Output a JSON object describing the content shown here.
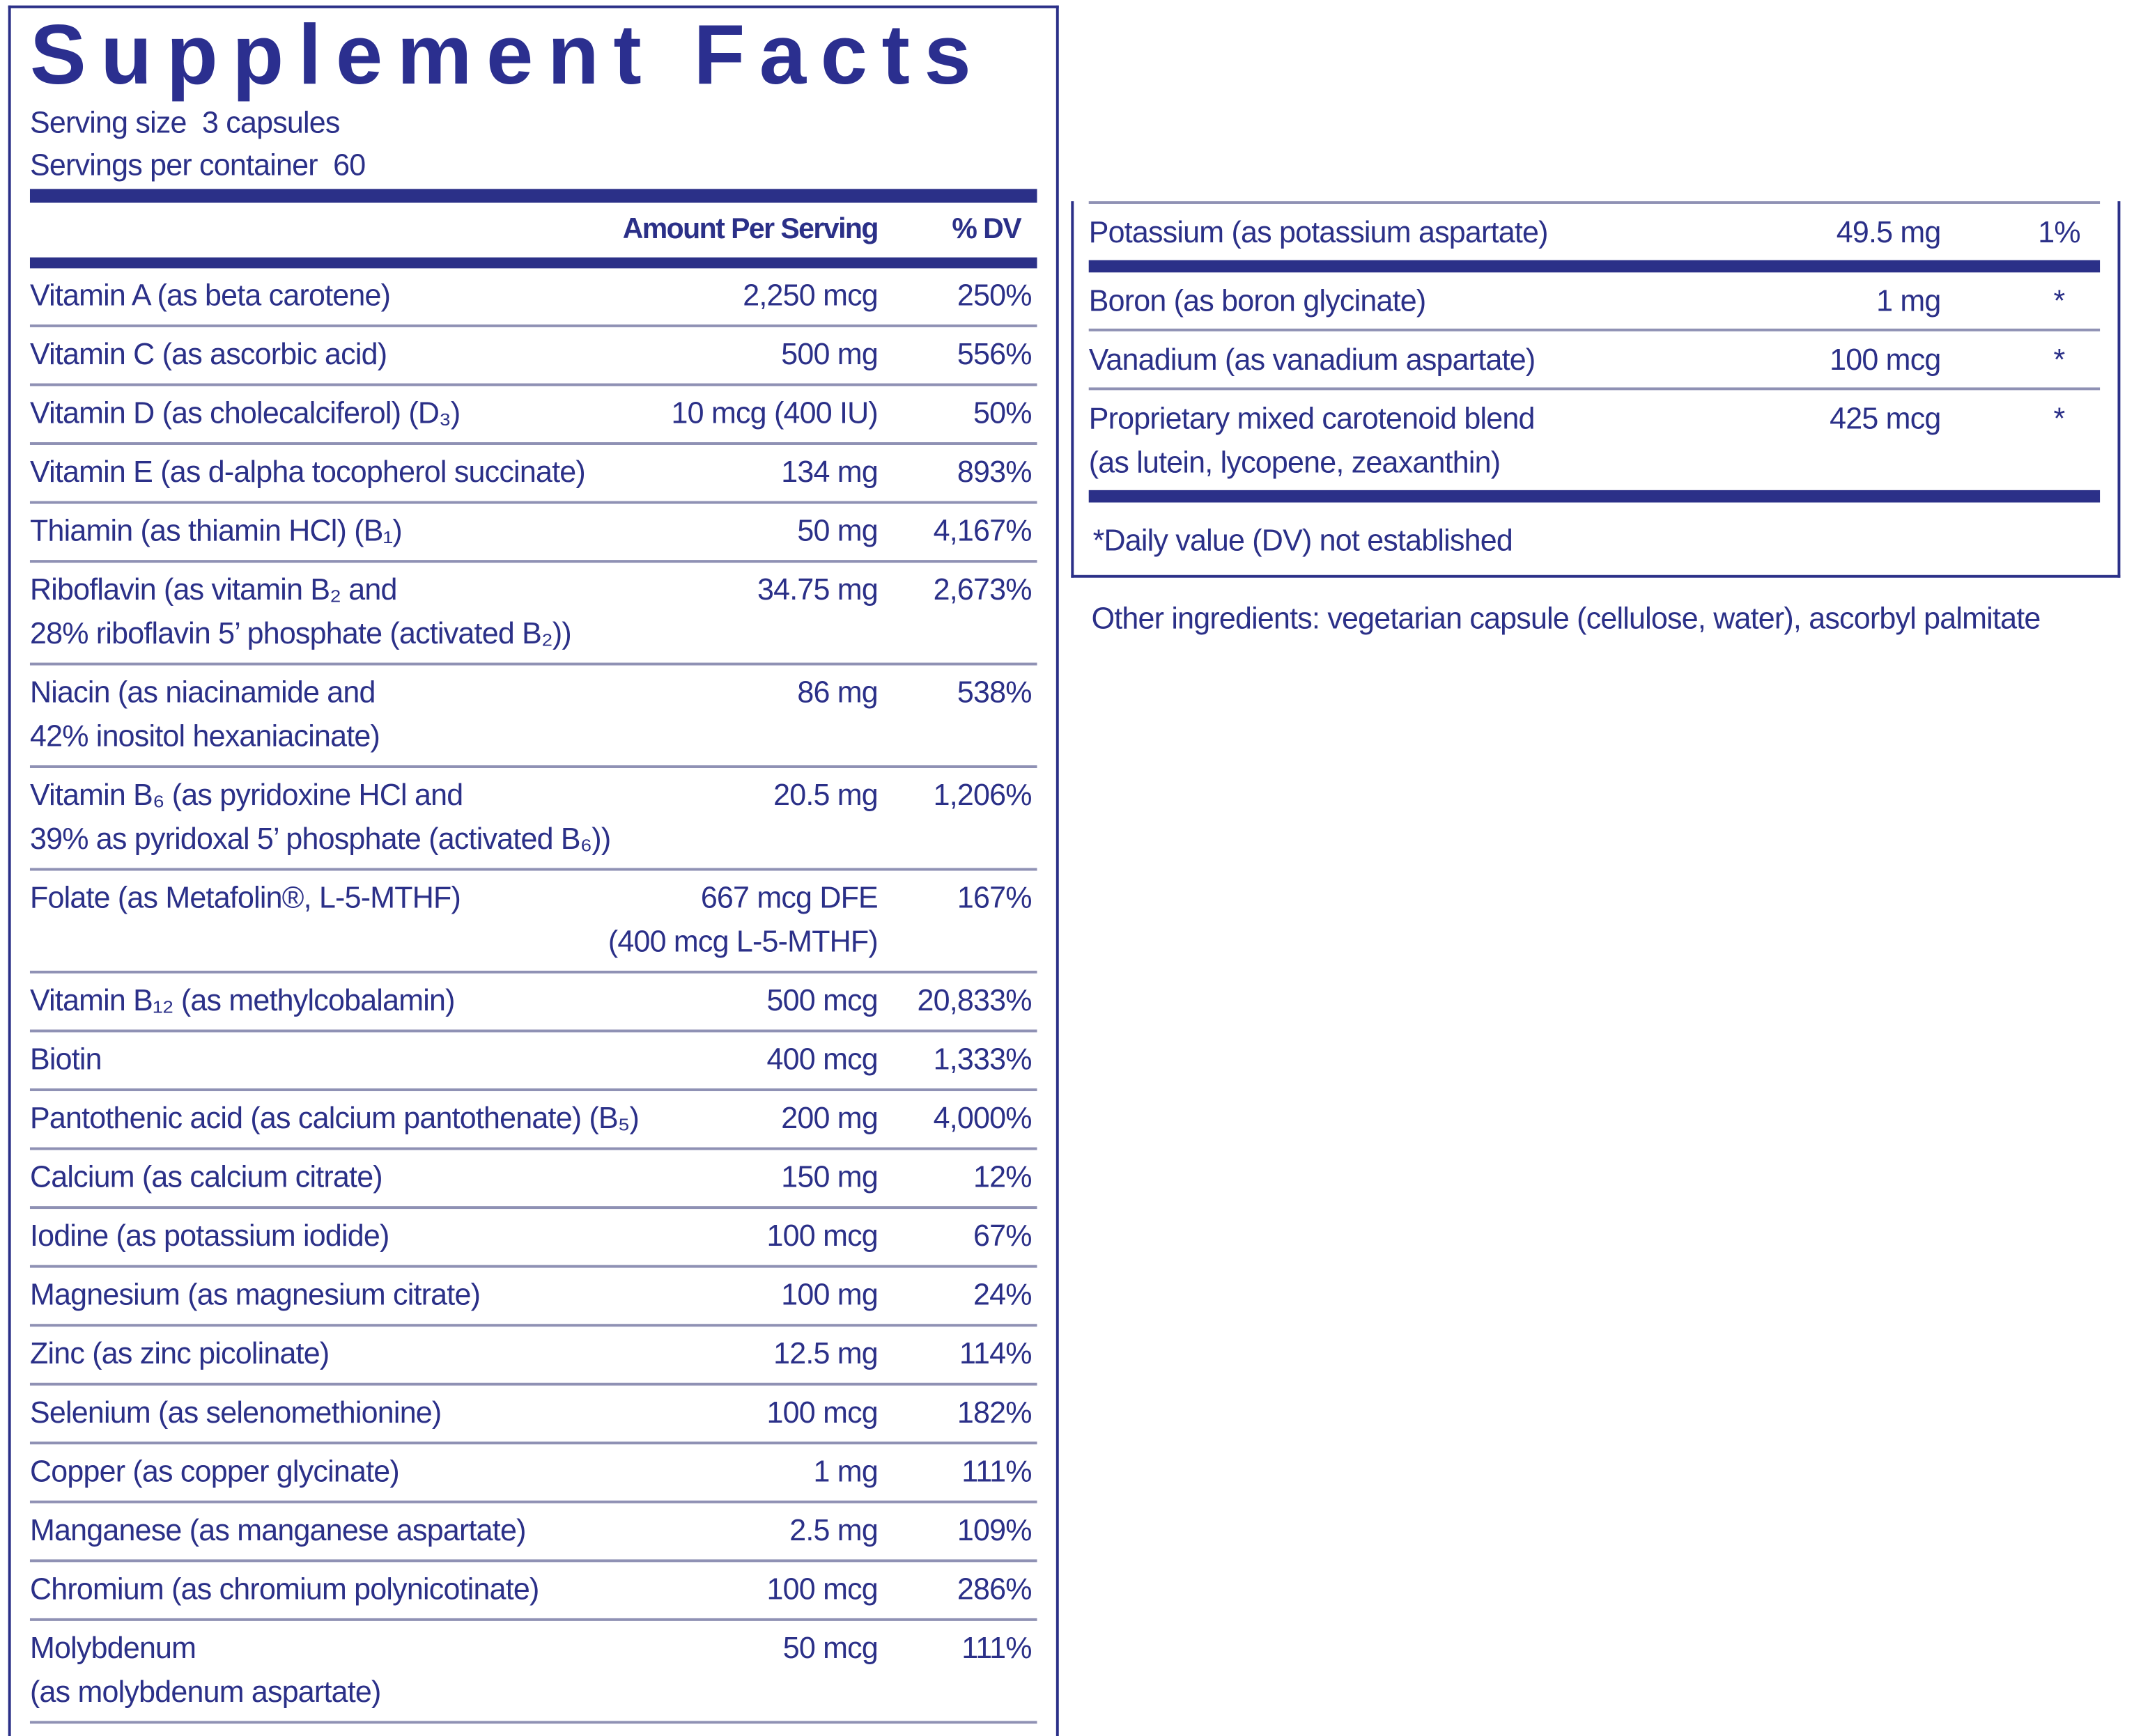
{
  "title": "Supplement Facts",
  "serving_size": "Serving size  3 capsules",
  "servings_per_container": "Servings per container  60",
  "header": {
    "amount": "Amount Per Serving",
    "dv": "% DV"
  },
  "left_table": {
    "rows": [
      {
        "name": [
          "Vitamin A (as beta carotene)"
        ],
        "amount": [
          "2,250 mcg"
        ],
        "dv": "250%"
      },
      {
        "name": [
          "Vitamin C (as ascorbic acid)"
        ],
        "amount": [
          "500 mg"
        ],
        "dv": "556%"
      },
      {
        "name": [
          "Vitamin D (as cholecalciferol) (D₃)"
        ],
        "amount": [
          "10 mcg (400 IU)"
        ],
        "dv": "50%"
      },
      {
        "name": [
          "Vitamin E (as d-alpha tocopherol succinate)"
        ],
        "amount": [
          "134 mg"
        ],
        "dv": "893%"
      },
      {
        "name": [
          "Thiamin (as thiamin HCl) (B₁)"
        ],
        "amount": [
          "50 mg"
        ],
        "dv": "4,167%"
      },
      {
        "name": [
          "Riboflavin (as vitamin B₂ and",
          "28% riboflavin 5’ phosphate (activated B₂))"
        ],
        "amount": [
          "34.75 mg"
        ],
        "dv": "2,673%"
      },
      {
        "name": [
          "Niacin (as niacinamide and",
          "42% inositol hexaniacinate)"
        ],
        "amount": [
          "86 mg"
        ],
        "dv": "538%"
      },
      {
        "name": [
          "Vitamin B₆ (as pyridoxine HCl and",
          "39% as pyridoxal 5’ phosphate (activated B₆))"
        ],
        "amount": [
          "20.5 mg"
        ],
        "dv": "1,206%"
      },
      {
        "name": [
          "Folate (as Metafolin®, L-5-MTHF)"
        ],
        "amount": [
          "667 mcg DFE",
          "(400 mcg L-5-MTHF)"
        ],
        "dv": "167%"
      },
      {
        "name": [
          "Vitamin B₁₂ (as methylcobalamin)"
        ],
        "amount": [
          "500 mcg"
        ],
        "dv": "20,833%"
      },
      {
        "name": [
          "Biotin"
        ],
        "amount": [
          "400 mcg"
        ],
        "dv": "1,333%"
      },
      {
        "name": [
          "Pantothenic acid (as calcium pantothenate) (B₅)"
        ],
        "amount": [
          "200 mg"
        ],
        "dv": "4,000%"
      },
      {
        "name": [
          "Calcium (as calcium citrate)"
        ],
        "amount": [
          "150 mg"
        ],
        "dv": "12%"
      },
      {
        "name": [
          "Iodine (as potassium iodide)"
        ],
        "amount": [
          "100 mcg"
        ],
        "dv": "67%"
      },
      {
        "name": [
          "Magnesium (as magnesium citrate)"
        ],
        "amount": [
          "100 mg"
        ],
        "dv": "24%"
      },
      {
        "name": [
          "Zinc (as zinc picolinate)"
        ],
        "amount": [
          "12.5 mg"
        ],
        "dv": "114%"
      },
      {
        "name": [
          "Selenium (as selenomethionine)"
        ],
        "amount": [
          "100 mcg"
        ],
        "dv": "182%"
      },
      {
        "name": [
          "Copper (as copper glycinate)"
        ],
        "amount": [
          "1 mg"
        ],
        "dv": "111%"
      },
      {
        "name": [
          "Manganese (as manganese aspartate)"
        ],
        "amount": [
          "2.5 mg"
        ],
        "dv": "109%"
      },
      {
        "name": [
          "Chromium (as chromium polynicotinate)"
        ],
        "amount": [
          "100 mcg"
        ],
        "dv": "286%"
      },
      {
        "name": [
          "Molybdenum",
          "(as molybdenum aspartate)"
        ],
        "amount": [
          "50 mcg"
        ],
        "dv": "111%"
      }
    ]
  },
  "right_table": {
    "rows": [
      {
        "name": [
          "Potassium (as potassium aspartate)"
        ],
        "amount": [
          "49.5 mg"
        ],
        "dv": "1%"
      },
      {
        "name": [
          "Boron (as boron glycinate)"
        ],
        "amount": [
          "1 mg"
        ],
        "dv": "*"
      },
      {
        "name": [
          "Vanadium (as vanadium aspartate)"
        ],
        "amount": [
          "100 mcg"
        ],
        "dv": "*"
      },
      {
        "name": [
          "Proprietary mixed carotenoid blend",
          "(as lutein, lycopene, zeaxanthin)"
        ],
        "amount": [
          "425 mcg"
        ],
        "dv": "*"
      }
    ]
  },
  "footnote": "*Daily value (DV) not established",
  "other_ingredients": "Other ingredients: vegetarian capsule (cellulose, water), ascorbyl palmitate"
}
